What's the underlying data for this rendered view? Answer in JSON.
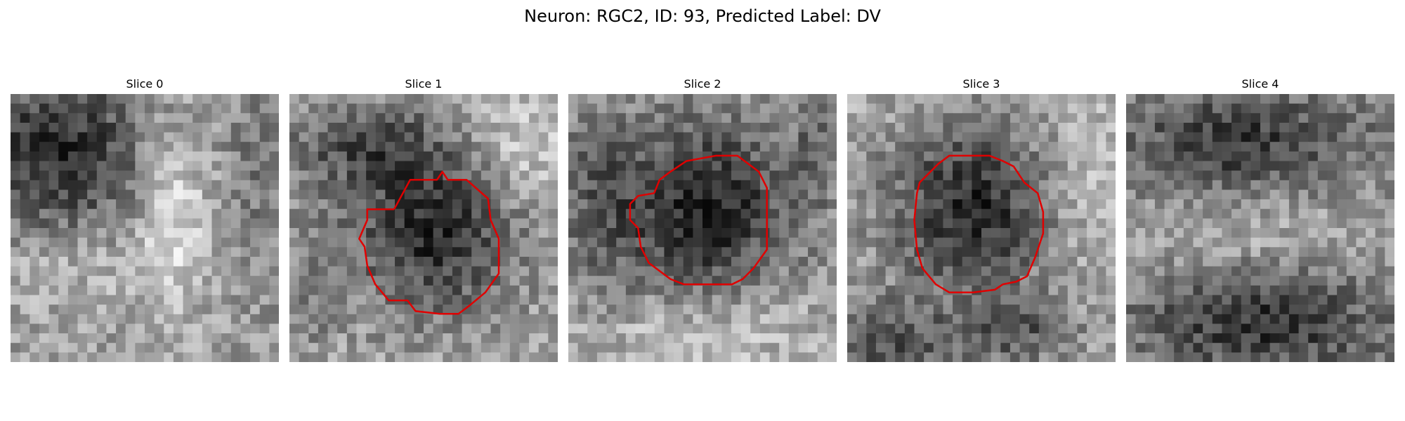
{
  "figure": {
    "title": "Neuron: RGC2, ID: 93, Predicted Label: DV",
    "contour_color": "#e00000",
    "panels": [
      {
        "label": "Slice 0",
        "has_contour": false
      },
      {
        "label": "Slice 1",
        "has_contour": true
      },
      {
        "label": "Slice 2",
        "has_contour": true
      },
      {
        "label": "Slice 3",
        "has_contour": true
      },
      {
        "label": "Slice 4",
        "has_contour": false
      }
    ]
  }
}
